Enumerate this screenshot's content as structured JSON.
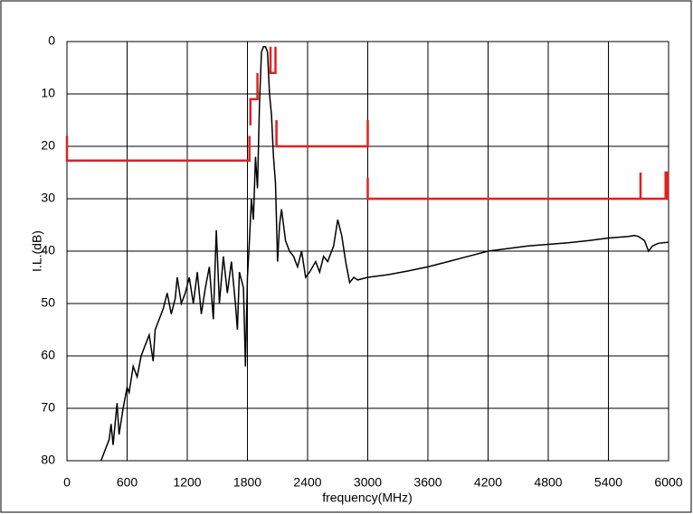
{
  "chart_data": {
    "type": "line",
    "ylabel": "I.L.(dB)",
    "xlabel": "frequency(MHz)",
    "xlim": [
      0,
      6000
    ],
    "xticks": [
      0,
      600,
      1200,
      1800,
      2400,
      3000,
      3600,
      4200,
      4800,
      5400,
      6000
    ],
    "ylim": [
      80,
      0
    ],
    "yticks": [
      0,
      10,
      20,
      30,
      40,
      50,
      60,
      70,
      80
    ],
    "grid": true,
    "series": [
      {
        "color": "#000000",
        "x": [
          340,
          380,
          420,
          440,
          460,
          500,
          520,
          560,
          600,
          620,
          660,
          700,
          740,
          780,
          820,
          860,
          880,
          920,
          960,
          1000,
          1040,
          1080,
          1100,
          1140,
          1180,
          1220,
          1260,
          1300,
          1340,
          1380,
          1420,
          1460,
          1490,
          1520,
          1560,
          1600,
          1640,
          1680,
          1700,
          1720,
          1760,
          1780,
          1800,
          1820,
          1840,
          1860,
          1880,
          1900,
          1920,
          1940,
          1960,
          1980,
          2000,
          2020,
          2040,
          2060,
          2080,
          2100,
          2120,
          2140,
          2180,
          2220,
          2260,
          2300,
          2340,
          2380,
          2420,
          2480,
          2520,
          2560,
          2600,
          2660,
          2700,
          2740,
          2780,
          2820,
          2860,
          2900,
          3000,
          3200,
          3400,
          3600,
          3800,
          4000,
          4200,
          4400,
          4600,
          4800,
          5000,
          5200,
          5400,
          5600,
          5660,
          5700,
          5760,
          5800,
          5840,
          5900,
          6000
        ],
        "values": [
          80,
          78,
          76,
          73,
          77,
          69,
          75,
          70,
          66,
          67,
          62,
          64,
          60,
          58,
          56,
          61,
          55,
          53,
          51,
          48,
          52,
          49,
          45,
          50,
          48,
          45,
          50,
          44,
          52,
          47,
          43,
          53,
          36,
          50,
          41,
          48,
          42,
          50,
          55,
          44,
          47,
          62,
          45,
          38,
          30,
          34,
          22,
          28,
          12,
          2,
          1,
          1,
          2,
          10,
          14,
          22,
          27,
          42,
          35,
          32,
          38,
          40,
          41,
          43,
          40,
          45,
          44,
          42,
          44,
          41,
          42,
          39,
          34,
          37,
          42,
          46,
          45,
          45.5,
          45,
          44.5,
          43.8,
          43,
          42,
          41,
          40,
          39.5,
          39,
          38.7,
          38.4,
          38,
          37.5,
          37.2,
          37,
          37.2,
          38,
          40,
          39,
          38.5,
          38.3
        ]
      },
      {
        "color": "#e02020",
        "x": [
          0,
          0,
          1820,
          1820,
          null,
          1830,
          1830,
          1900,
          1900,
          null,
          2030,
          2030,
          2080,
          2080,
          null,
          2090,
          2090,
          3000,
          3000,
          null,
          3000,
          3000,
          5720,
          5720,
          5720,
          5970,
          5970,
          5990,
          5990,
          6000
        ],
        "values": [
          18,
          22.7,
          22.7,
          18,
          null,
          16,
          11,
          11,
          6,
          null,
          1,
          6,
          6,
          1,
          null,
          15,
          20,
          20,
          15,
          null,
          26,
          30,
          30,
          25,
          30,
          30,
          25,
          25,
          30,
          30
        ]
      }
    ]
  }
}
